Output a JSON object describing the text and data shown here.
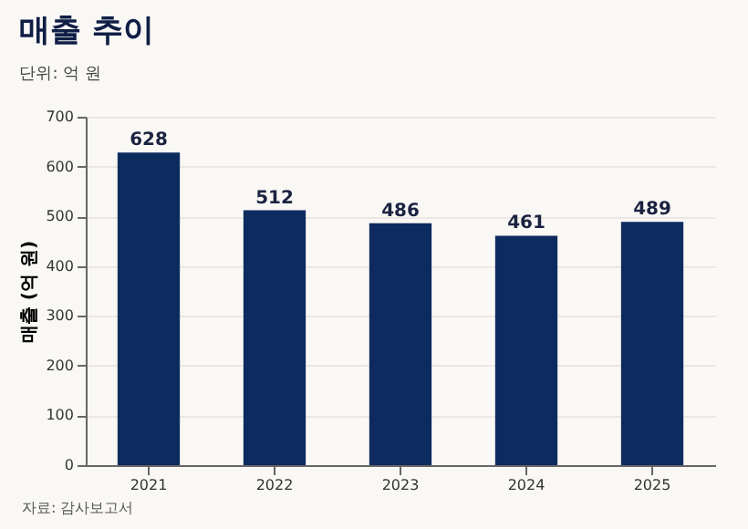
{
  "chart_data": {
    "type": "bar",
    "title": "매출 추이",
    "subtitle": "단위: 억 원",
    "ylabel": "매출 (억 원)",
    "categories": [
      "2021",
      "2022",
      "2023",
      "2024",
      "2025"
    ],
    "values": [
      628,
      512,
      486,
      461,
      489
    ],
    "color": "#0d2b5e",
    "data_labels": true,
    "ylim": [
      0,
      700
    ],
    "yticks": [
      0,
      100,
      200,
      300,
      400,
      500,
      600,
      700
    ],
    "grid": "y",
    "annotations": [
      "자료: 감사보고서"
    ]
  }
}
